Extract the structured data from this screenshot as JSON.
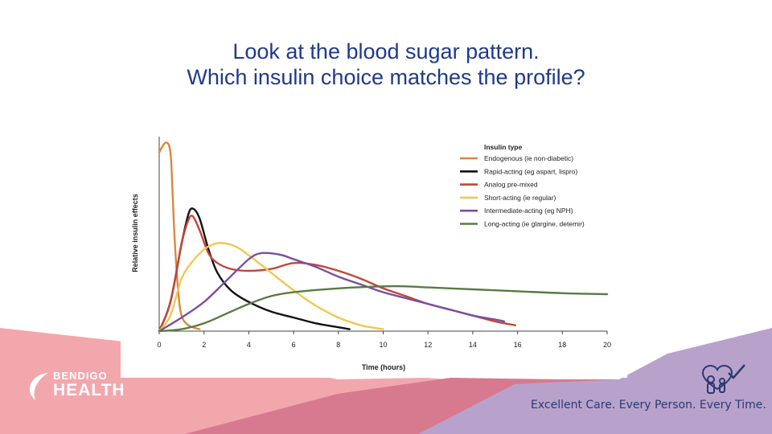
{
  "slide": {
    "title_line1": "Look at the blood sugar pattern.",
    "title_line2": "Which insulin choice matches the profile?"
  },
  "branding": {
    "logo_top": "BENDIGO",
    "logo_bottom": "HEALTH",
    "tagline": "Excellent Care. Every Person. Every Time.",
    "icon": "care-hearts-icon",
    "band_colors": {
      "pink": "#f2a7ad",
      "rose": "#d77a90",
      "lavender": "#b8a2cc",
      "purple": "#b39ad0"
    }
  },
  "chart_data": {
    "type": "line",
    "title": "",
    "xlabel": "Time (hours)",
    "ylabel": "Relative insulin effects",
    "xlim": [
      0,
      20
    ],
    "ylim": [
      0,
      1
    ],
    "xticks": [
      "0",
      "2",
      "4",
      "6",
      "8",
      "10",
      "12",
      "14",
      "16",
      "18",
      "20"
    ],
    "yticks_visible": false,
    "grid": false,
    "legend_title": "Insulin type",
    "legend_position": "top-right",
    "series": [
      {
        "name": "Endogenous (ie non-diabetic)",
        "color": "#d8883e",
        "points": [
          [
            0,
            0.92
          ],
          [
            0.3,
            0.97
          ],
          [
            0.5,
            0.92
          ],
          [
            0.6,
            0.7
          ],
          [
            0.7,
            0.45
          ],
          [
            0.85,
            0.2
          ],
          [
            1.0,
            0.08
          ],
          [
            1.3,
            0.03
          ],
          [
            1.8,
            0.01
          ]
        ]
      },
      {
        "name": "Rapid-acting (eg aspart, lispro)",
        "color": "#111111",
        "points": [
          [
            0,
            0
          ],
          [
            0.5,
            0.15
          ],
          [
            1.0,
            0.45
          ],
          [
            1.3,
            0.6
          ],
          [
            1.5,
            0.63
          ],
          [
            1.8,
            0.58
          ],
          [
            2.2,
            0.42
          ],
          [
            2.6,
            0.3
          ],
          [
            3.2,
            0.21
          ],
          [
            4,
            0.15
          ],
          [
            5,
            0.1
          ],
          [
            6,
            0.07
          ],
          [
            7,
            0.04
          ],
          [
            8,
            0.02
          ],
          [
            8.5,
            0.01
          ]
        ]
      },
      {
        "name": "Analog pre-mixed",
        "color": "#c0473a",
        "points": [
          [
            0,
            0
          ],
          [
            0.5,
            0.15
          ],
          [
            1.0,
            0.45
          ],
          [
            1.3,
            0.57
          ],
          [
            1.5,
            0.59
          ],
          [
            1.8,
            0.52
          ],
          [
            2.2,
            0.4
          ],
          [
            2.6,
            0.35
          ],
          [
            3.2,
            0.32
          ],
          [
            4,
            0.31
          ],
          [
            5,
            0.32
          ],
          [
            6,
            0.35
          ],
          [
            7,
            0.34
          ],
          [
            8,
            0.31
          ],
          [
            9,
            0.27
          ],
          [
            10,
            0.22
          ],
          [
            11,
            0.18
          ],
          [
            12,
            0.14
          ],
          [
            13,
            0.11
          ],
          [
            14,
            0.08
          ],
          [
            15,
            0.05
          ],
          [
            15.9,
            0.03
          ]
        ]
      },
      {
        "name": "Short-acting (ie regular)",
        "color": "#f0c850",
        "points": [
          [
            0,
            0
          ],
          [
            0.5,
            0.08
          ],
          [
            1,
            0.27
          ],
          [
            1.5,
            0.36
          ],
          [
            2,
            0.42
          ],
          [
            2.5,
            0.45
          ],
          [
            3,
            0.45
          ],
          [
            3.5,
            0.43
          ],
          [
            4,
            0.39
          ],
          [
            5,
            0.3
          ],
          [
            6,
            0.21
          ],
          [
            7,
            0.13
          ],
          [
            8,
            0.07
          ],
          [
            9,
            0.03
          ],
          [
            10,
            0.01
          ]
        ]
      },
      {
        "name": "Intermediate-acting (eg NPH)",
        "color": "#7a4f9e",
        "points": [
          [
            0,
            0
          ],
          [
            1,
            0.07
          ],
          [
            2,
            0.15
          ],
          [
            3,
            0.26
          ],
          [
            4,
            0.37
          ],
          [
            4.5,
            0.4
          ],
          [
            5,
            0.4
          ],
          [
            5.5,
            0.39
          ],
          [
            6,
            0.37
          ],
          [
            7,
            0.33
          ],
          [
            8,
            0.28
          ],
          [
            9,
            0.24
          ],
          [
            10,
            0.2
          ],
          [
            11,
            0.17
          ],
          [
            12,
            0.14
          ],
          [
            13,
            0.11
          ],
          [
            14,
            0.08
          ],
          [
            15,
            0.06
          ],
          [
            15.4,
            0.05
          ]
        ]
      },
      {
        "name": "Long-acting (ie glargine, detemir)",
        "color": "#5a7a44",
        "points": [
          [
            0,
            0
          ],
          [
            1,
            0.01
          ],
          [
            2,
            0.04
          ],
          [
            3,
            0.09
          ],
          [
            4,
            0.14
          ],
          [
            5,
            0.18
          ],
          [
            6,
            0.2
          ],
          [
            8,
            0.22
          ],
          [
            10,
            0.23
          ],
          [
            11,
            0.23
          ],
          [
            12,
            0.225
          ],
          [
            14,
            0.215
          ],
          [
            16,
            0.205
          ],
          [
            18,
            0.195
          ],
          [
            20,
            0.19
          ]
        ]
      }
    ]
  }
}
